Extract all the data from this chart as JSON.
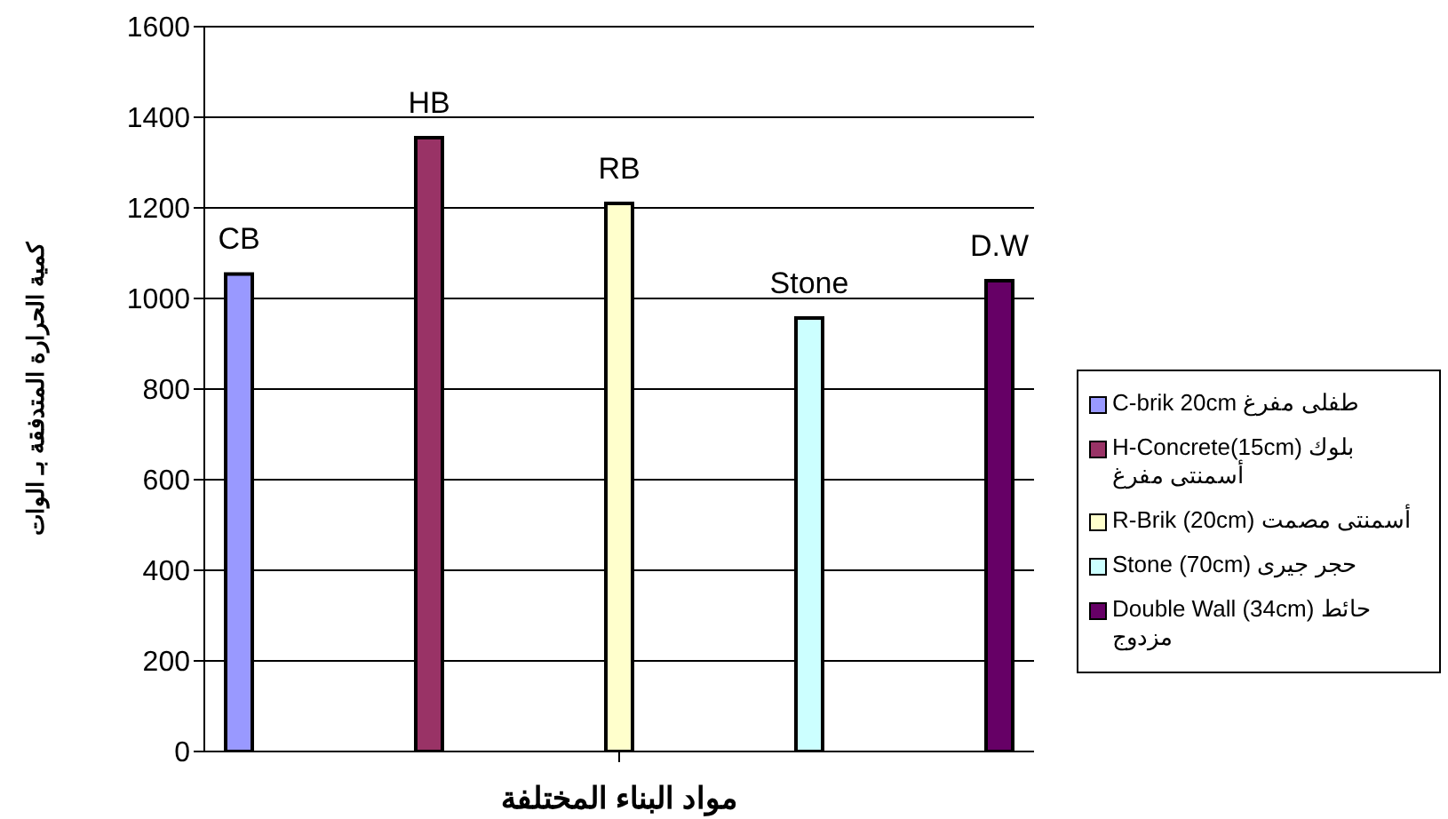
{
  "chart_data": {
    "type": "bar",
    "xlabel": "مواد البناء المختلفة",
    "ylabel": "كمية الحرارة المتدفقة بـ الوات",
    "categories": [
      null
    ],
    "series": [
      {
        "name": "C-brik  20cm طفلى مفرغ",
        "color": "#9999ff",
        "values": [
          1054
        ],
        "value_labels": [
          "CB"
        ]
      },
      {
        "name": "H-Concrete(15cm) بلوك أسمنتى مفرغ",
        "color": "#993366",
        "values": [
          1355
        ],
        "value_labels": [
          "HB"
        ]
      },
      {
        "name": "R-Brik (20cm) أسمنتى مصمت",
        "color": "#ffffcc",
        "values": [
          1210
        ],
        "value_labels": [
          "RB"
        ]
      },
      {
        "name": "Stone (70cm) حجر جيرى",
        "color": "#ccffff",
        "values": [
          957
        ],
        "value_labels": [
          "Stone"
        ]
      },
      {
        "name": "Double Wall (34cm) حائط مزدوج",
        "color": "#660066",
        "values": [
          1039
        ],
        "value_labels": [
          "D.W"
        ]
      }
    ],
    "ylim": [
      0,
      1600
    ],
    "yticks": [
      0,
      200,
      400,
      600,
      800,
      1000,
      1200,
      1400,
      1600
    ],
    "grid": "y",
    "legend": "right"
  }
}
